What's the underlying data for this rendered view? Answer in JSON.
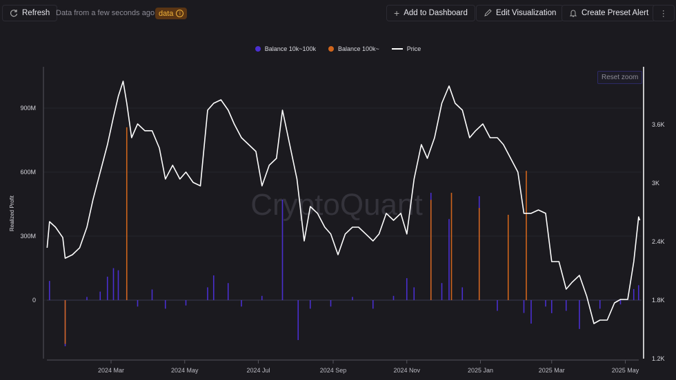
{
  "toolbar": {
    "refresh": "Refresh",
    "status": "Data from a few seconds ago",
    "badge": "data",
    "add_dashboard": "Add to Dashboard",
    "edit_viz": "Edit Visualization",
    "preset_alert": "Create Preset Alert"
  },
  "watermark": "CryptoQuant",
  "reset_zoom": "Reset zoom",
  "chart_data": {
    "type": "bar+line",
    "legend_position": "top",
    "grid": true,
    "ylabel": "Realized Profit",
    "y_left": {
      "ticks": [
        "0",
        "300M",
        "600M",
        "900M"
      ],
      "tick_values": [
        0,
        300,
        600,
        900
      ],
      "unit": "M"
    },
    "y_right": {
      "ticks": [
        "1.2K",
        "1.8K",
        "2.4K",
        "3K",
        "3.6K"
      ],
      "tick_values": [
        1200,
        1800,
        2400,
        3000,
        3600
      ]
    },
    "x_ticks": [
      {
        "label": "2024 Mar",
        "date": "2024-03-01"
      },
      {
        "label": "2024 May",
        "date": "2024-05-01"
      },
      {
        "label": "2024 Jul",
        "date": "2024-07-01"
      },
      {
        "label": "2024 Sep",
        "date": "2024-09-01"
      },
      {
        "label": "2024 Nov",
        "date": "2024-11-01"
      },
      {
        "label": "2025 Jan",
        "date": "2025-01-01"
      },
      {
        "label": "2025 Mar",
        "date": "2025-03-01"
      },
      {
        "label": "2025 May",
        "date": "2025-05-01"
      }
    ],
    "series": [
      {
        "name": "Balance 10k~100k",
        "type": "bar",
        "color": "#4a2fd0",
        "points": [
          [
            "2024-01-10",
            90
          ],
          [
            "2024-01-23",
            -216
          ],
          [
            "2024-02-10",
            15
          ],
          [
            "2024-02-21",
            40
          ],
          [
            "2024-02-27",
            110
          ],
          [
            "2024-03-03",
            150
          ],
          [
            "2024-03-07",
            140
          ],
          [
            "2024-03-14",
            70
          ],
          [
            "2024-03-23",
            -30
          ],
          [
            "2024-04-04",
            50
          ],
          [
            "2024-04-15",
            -40
          ],
          [
            "2024-05-02",
            -25
          ],
          [
            "2024-05-20",
            60
          ],
          [
            "2024-05-25",
            116
          ],
          [
            "2024-06-06",
            80
          ],
          [
            "2024-06-17",
            -30
          ],
          [
            "2024-07-04",
            20
          ],
          [
            "2024-07-21",
            471
          ],
          [
            "2024-08-03",
            -187
          ],
          [
            "2024-08-13",
            -40
          ],
          [
            "2024-08-30",
            -30
          ],
          [
            "2024-09-17",
            15
          ],
          [
            "2024-10-04",
            -40
          ],
          [
            "2024-10-21",
            20
          ],
          [
            "2024-11-01",
            103
          ],
          [
            "2024-11-07",
            60
          ],
          [
            "2024-11-21",
            503
          ],
          [
            "2024-11-30",
            80
          ],
          [
            "2024-12-06",
            380
          ],
          [
            "2024-12-17",
            60
          ],
          [
            "2024-12-31",
            487
          ],
          [
            "2025-01-15",
            -50
          ],
          [
            "2025-02-06",
            -60
          ],
          [
            "2025-02-12",
            -110
          ],
          [
            "2025-02-24",
            -30
          ],
          [
            "2025-03-01",
            -61
          ],
          [
            "2025-03-13",
            -50
          ],
          [
            "2025-03-24",
            -135
          ],
          [
            "2025-04-10",
            -40
          ],
          [
            "2025-04-27",
            -20
          ],
          [
            "2025-05-08",
            52
          ],
          [
            "2025-05-12",
            70
          ]
        ]
      },
      {
        "name": "Balance 100k~",
        "type": "bar",
        "color": "#d0651c",
        "points": [
          [
            "2024-01-23",
            -205
          ],
          [
            "2024-03-14",
            810
          ],
          [
            "2024-11-21",
            470
          ],
          [
            "2024-12-08",
            503
          ],
          [
            "2024-12-31",
            432
          ],
          [
            "2025-01-24",
            400
          ],
          [
            "2025-02-08",
            606
          ]
        ]
      },
      {
        "name": "Price",
        "type": "line",
        "color": "#ffffff",
        "axis": "right",
        "points": [
          [
            "2024-01-08",
            2337
          ],
          [
            "2024-01-10",
            2605
          ],
          [
            "2024-01-15",
            2548
          ],
          [
            "2024-01-21",
            2442
          ],
          [
            "2024-01-23",
            2230
          ],
          [
            "2024-01-29",
            2266
          ],
          [
            "2024-02-04",
            2337
          ],
          [
            "2024-02-10",
            2548
          ],
          [
            "2024-02-15",
            2830
          ],
          [
            "2024-02-21",
            3113
          ],
          [
            "2024-02-27",
            3395
          ],
          [
            "2024-03-03",
            3678
          ],
          [
            "2024-03-07",
            3890
          ],
          [
            "2024-03-11",
            4045
          ],
          [
            "2024-03-14",
            3819
          ],
          [
            "2024-03-18",
            3466
          ],
          [
            "2024-03-23",
            3607
          ],
          [
            "2024-03-29",
            3537
          ],
          [
            "2024-04-04",
            3537
          ],
          [
            "2024-04-10",
            3360
          ],
          [
            "2024-04-15",
            3042
          ],
          [
            "2024-04-21",
            3183
          ],
          [
            "2024-04-27",
            3042
          ],
          [
            "2024-05-02",
            3113
          ],
          [
            "2024-05-08",
            3007
          ],
          [
            "2024-05-14",
            2972
          ],
          [
            "2024-05-20",
            3748
          ],
          [
            "2024-05-25",
            3819
          ],
          [
            "2024-05-31",
            3854
          ],
          [
            "2024-06-06",
            3748
          ],
          [
            "2024-06-11",
            3607
          ],
          [
            "2024-06-17",
            3466
          ],
          [
            "2024-06-23",
            3395
          ],
          [
            "2024-06-29",
            3325
          ],
          [
            "2024-07-04",
            2972
          ],
          [
            "2024-07-10",
            3183
          ],
          [
            "2024-07-16",
            3254
          ],
          [
            "2024-07-21",
            3748
          ],
          [
            "2024-07-27",
            3395
          ],
          [
            "2024-08-02",
            3042
          ],
          [
            "2024-08-08",
            2407
          ],
          [
            "2024-08-13",
            2760
          ],
          [
            "2024-08-19",
            2690
          ],
          [
            "2024-08-25",
            2548
          ],
          [
            "2024-08-30",
            2478
          ],
          [
            "2024-09-05",
            2266
          ],
          [
            "2024-09-11",
            2478
          ],
          [
            "2024-09-17",
            2548
          ],
          [
            "2024-09-22",
            2548
          ],
          [
            "2024-09-28",
            2478
          ],
          [
            "2024-10-04",
            2407
          ],
          [
            "2024-10-09",
            2478
          ],
          [
            "2024-10-15",
            2690
          ],
          [
            "2024-10-21",
            2619
          ],
          [
            "2024-10-27",
            2690
          ],
          [
            "2024-11-01",
            2478
          ],
          [
            "2024-11-07",
            3042
          ],
          [
            "2024-11-13",
            3395
          ],
          [
            "2024-11-18",
            3254
          ],
          [
            "2024-11-24",
            3466
          ],
          [
            "2024-11-30",
            3819
          ],
          [
            "2024-12-06",
            3996
          ],
          [
            "2024-12-11",
            3819
          ],
          [
            "2024-12-17",
            3748
          ],
          [
            "2024-12-23",
            3466
          ],
          [
            "2024-12-28",
            3537
          ],
          [
            "2025-01-03",
            3607
          ],
          [
            "2025-01-09",
            3466
          ],
          [
            "2025-01-15",
            3466
          ],
          [
            "2025-01-20",
            3395
          ],
          [
            "2025-01-26",
            3254
          ],
          [
            "2025-02-01",
            3113
          ],
          [
            "2025-02-06",
            2690
          ],
          [
            "2025-02-12",
            2690
          ],
          [
            "2025-02-18",
            2725
          ],
          [
            "2025-02-24",
            2690
          ],
          [
            "2025-03-01",
            2195
          ],
          [
            "2025-03-07",
            2195
          ],
          [
            "2025-03-13",
            1913
          ],
          [
            "2025-03-18",
            1984
          ],
          [
            "2025-03-24",
            2054
          ],
          [
            "2025-03-30",
            1842
          ],
          [
            "2025-04-05",
            1560
          ],
          [
            "2025-04-10",
            1595
          ],
          [
            "2025-04-16",
            1595
          ],
          [
            "2025-04-22",
            1772
          ],
          [
            "2025-04-27",
            1807
          ],
          [
            "2025-05-03",
            1807
          ],
          [
            "2025-05-08",
            2195
          ],
          [
            "2025-05-12",
            2654
          ],
          [
            "2025-05-13",
            2619
          ]
        ]
      }
    ]
  }
}
